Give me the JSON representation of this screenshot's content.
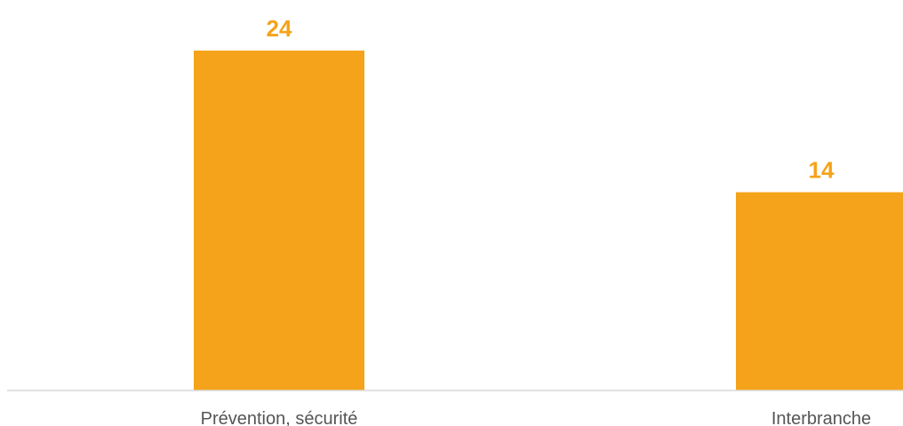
{
  "chart_data": {
    "type": "bar",
    "categories": [
      "Prévention, sécurité",
      "Interbranche"
    ],
    "values": [
      24,
      14
    ],
    "title": "",
    "xlabel": "",
    "ylabel": "",
    "ylim": [
      0,
      24
    ],
    "grid": false,
    "legend": "none",
    "colors": {
      "bar": "#F5A31A",
      "value_label": "#F5A31A",
      "category_label": "#555555",
      "axis": "#D9D9D9"
    }
  }
}
